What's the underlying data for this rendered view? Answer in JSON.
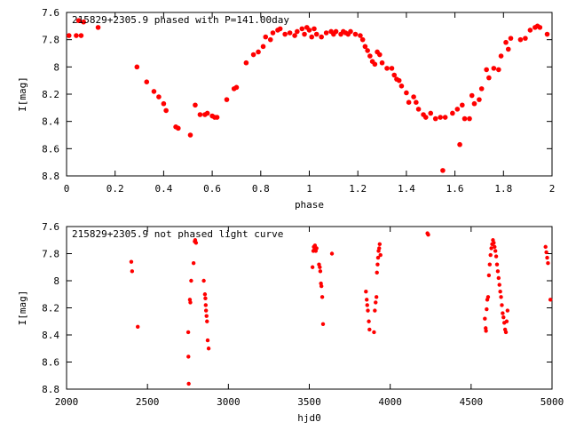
{
  "chart_data": [
    {
      "type": "scatter",
      "title": "215829+2305.9 phased with P=141.00day",
      "xlabel": "phase",
      "ylabel": "I[mag]",
      "xlim": [
        0,
        2
      ],
      "ylim": [
        8.8,
        7.6
      ],
      "y_inverted": true,
      "grid": false,
      "x_ticks": [
        "0",
        "0.2",
        "0.4",
        "0.6",
        "0.8",
        "1",
        "1.2",
        "1.4",
        "1.6",
        "1.8",
        "2"
      ],
      "y_ticks": [
        "7.6",
        "7.8",
        "8",
        "8.2",
        "8.4",
        "8.6",
        "8.8"
      ],
      "x_tick_values": [
        0,
        0.2,
        0.4,
        0.6,
        0.8,
        1.0,
        1.2,
        1.4,
        1.6,
        1.8,
        2.0
      ],
      "y_tick_values": [
        7.6,
        7.8,
        8.0,
        8.2,
        8.4,
        8.6,
        8.8
      ],
      "marker_color": "#ff0000",
      "points": [
        [
          0.01,
          7.77
        ],
        [
          0.04,
          7.77
        ],
        [
          0.05,
          7.66
        ],
        [
          0.06,
          7.77
        ],
        [
          0.07,
          7.67
        ],
        [
          0.13,
          7.71
        ],
        [
          0.29,
          8.0
        ],
        [
          0.33,
          8.11
        ],
        [
          0.36,
          8.18
        ],
        [
          0.38,
          8.22
        ],
        [
          0.4,
          8.27
        ],
        [
          0.41,
          8.32
        ],
        [
          0.45,
          8.44
        ],
        [
          0.46,
          8.45
        ],
        [
          0.51,
          8.5
        ],
        [
          0.53,
          8.28
        ],
        [
          0.55,
          8.35
        ],
        [
          0.57,
          8.35
        ],
        [
          0.58,
          8.34
        ],
        [
          0.6,
          8.36
        ],
        [
          0.61,
          8.37
        ],
        [
          0.62,
          8.37
        ],
        [
          0.66,
          8.24
        ],
        [
          0.69,
          8.16
        ],
        [
          0.7,
          8.15
        ],
        [
          0.74,
          7.97
        ],
        [
          0.77,
          7.91
        ],
        [
          0.79,
          7.89
        ],
        [
          0.81,
          7.85
        ],
        [
          0.82,
          7.78
        ],
        [
          0.84,
          7.8
        ],
        [
          0.85,
          7.75
        ],
        [
          0.87,
          7.73
        ],
        [
          0.88,
          7.72
        ],
        [
          0.9,
          7.76
        ],
        [
          0.92,
          7.75
        ],
        [
          0.94,
          7.77
        ],
        [
          0.95,
          7.74
        ],
        [
          0.97,
          7.72
        ],
        [
          0.98,
          7.76
        ],
        [
          0.99,
          7.71
        ],
        [
          1.0,
          7.73
        ],
        [
          1.01,
          7.78
        ],
        [
          1.02,
          7.72
        ],
        [
          1.03,
          7.76
        ],
        [
          1.05,
          7.78
        ],
        [
          1.07,
          7.75
        ],
        [
          1.09,
          7.74
        ],
        [
          1.1,
          7.76
        ],
        [
          1.11,
          7.74
        ],
        [
          1.13,
          7.76
        ],
        [
          1.14,
          7.74
        ],
        [
          1.15,
          7.75
        ],
        [
          1.16,
          7.76
        ],
        [
          1.17,
          7.74
        ],
        [
          1.19,
          7.76
        ],
        [
          1.21,
          7.77
        ],
        [
          1.22,
          7.8
        ],
        [
          1.23,
          7.85
        ],
        [
          1.24,
          7.88
        ],
        [
          1.25,
          7.92
        ],
        [
          1.26,
          7.96
        ],
        [
          1.27,
          7.98
        ],
        [
          1.28,
          7.89
        ],
        [
          1.29,
          7.91
        ],
        [
          1.3,
          7.97
        ],
        [
          1.32,
          8.01
        ],
        [
          1.34,
          8.01
        ],
        [
          1.35,
          8.06
        ],
        [
          1.36,
          8.09
        ],
        [
          1.37,
          8.1
        ],
        [
          1.38,
          8.14
        ],
        [
          1.4,
          8.19
        ],
        [
          1.41,
          8.26
        ],
        [
          1.43,
          8.22
        ],
        [
          1.44,
          8.26
        ],
        [
          1.45,
          8.31
        ],
        [
          1.47,
          8.35
        ],
        [
          1.48,
          8.37
        ],
        [
          1.5,
          8.34
        ],
        [
          1.52,
          8.38
        ],
        [
          1.54,
          8.37
        ],
        [
          1.55,
          8.76
        ],
        [
          1.56,
          8.37
        ],
        [
          1.59,
          8.34
        ],
        [
          1.61,
          8.31
        ],
        [
          1.62,
          8.57
        ],
        [
          1.63,
          8.28
        ],
        [
          1.64,
          8.38
        ],
        [
          1.66,
          8.38
        ],
        [
          1.67,
          8.21
        ],
        [
          1.68,
          8.27
        ],
        [
          1.7,
          8.24
        ],
        [
          1.71,
          8.16
        ],
        [
          1.73,
          8.02
        ],
        [
          1.74,
          8.08
        ],
        [
          1.76,
          8.01
        ],
        [
          1.78,
          8.02
        ],
        [
          1.79,
          7.92
        ],
        [
          1.81,
          7.82
        ],
        [
          1.82,
          7.87
        ],
        [
          1.83,
          7.79
        ],
        [
          1.87,
          7.8
        ],
        [
          1.89,
          7.79
        ],
        [
          1.91,
          7.73
        ],
        [
          1.93,
          7.71
        ],
        [
          1.94,
          7.7
        ],
        [
          1.95,
          7.71
        ],
        [
          1.98,
          7.76
        ]
      ]
    },
    {
      "type": "scatter",
      "title": "215829+2305.9 not phased light curve",
      "xlabel": "hjd0",
      "ylabel": "I[mag]",
      "xlim": [
        2000,
        5000
      ],
      "ylim": [
        8.8,
        7.6
      ],
      "y_inverted": true,
      "grid": false,
      "x_ticks": [
        "2000",
        "2500",
        "3000",
        "3500",
        "4000",
        "4500",
        "5000"
      ],
      "y_ticks": [
        "7.6",
        "7.8",
        "8",
        "8.2",
        "8.4",
        "8.6",
        "8.8"
      ],
      "x_tick_values": [
        2000,
        2500,
        3000,
        3500,
        4000,
        4500,
        5000
      ],
      "y_tick_values": [
        7.6,
        7.8,
        8.0,
        8.2,
        8.4,
        8.6,
        8.8
      ],
      "marker_color": "#ff0000",
      "points": [
        [
          2400,
          7.86
        ],
        [
          2405,
          7.93
        ],
        [
          2440,
          8.34
        ],
        [
          2752,
          8.38
        ],
        [
          2753,
          8.56
        ],
        [
          2755,
          8.76
        ],
        [
          2762,
          8.14
        ],
        [
          2765,
          8.16
        ],
        [
          2770,
          8.0
        ],
        [
          2785,
          7.87
        ],
        [
          2792,
          7.71
        ],
        [
          2795,
          7.7
        ],
        [
          2800,
          7.72
        ],
        [
          2848,
          8.0
        ],
        [
          2855,
          8.1
        ],
        [
          2858,
          8.13
        ],
        [
          2860,
          8.18
        ],
        [
          2862,
          8.22
        ],
        [
          2865,
          8.26
        ],
        [
          2868,
          8.3
        ],
        [
          2872,
          8.44
        ],
        [
          2878,
          8.5
        ],
        [
          3520,
          7.9
        ],
        [
          3525,
          7.78
        ],
        [
          3528,
          7.75
        ],
        [
          3532,
          7.77
        ],
        [
          3535,
          7.74
        ],
        [
          3540,
          7.78
        ],
        [
          3545,
          7.76
        ],
        [
          3560,
          7.88
        ],
        [
          3565,
          7.9
        ],
        [
          3568,
          7.93
        ],
        [
          3572,
          8.02
        ],
        [
          3575,
          8.04
        ],
        [
          3580,
          8.12
        ],
        [
          3585,
          8.32
        ],
        [
          3640,
          7.8
        ],
        [
          3850,
          8.08
        ],
        [
          3855,
          8.14
        ],
        [
          3858,
          8.18
        ],
        [
          3862,
          8.22
        ],
        [
          3868,
          8.3
        ],
        [
          3872,
          8.36
        ],
        [
          3900,
          8.38
        ],
        [
          3905,
          8.22
        ],
        [
          3910,
          8.16
        ],
        [
          3915,
          8.12
        ],
        [
          3918,
          7.94
        ],
        [
          3922,
          7.88
        ],
        [
          3925,
          7.83
        ],
        [
          3928,
          7.78
        ],
        [
          3932,
          7.76
        ],
        [
          3935,
          7.73
        ],
        [
          3940,
          7.81
        ],
        [
          4230,
          7.65
        ],
        [
          4235,
          7.66
        ],
        [
          4585,
          8.28
        ],
        [
          4590,
          8.35
        ],
        [
          4592,
          8.37
        ],
        [
          4596,
          8.21
        ],
        [
          4600,
          8.14
        ],
        [
          4605,
          8.12
        ],
        [
          4610,
          7.96
        ],
        [
          4615,
          7.88
        ],
        [
          4620,
          7.81
        ],
        [
          4625,
          7.76
        ],
        [
          4630,
          7.73
        ],
        [
          4635,
          7.7
        ],
        [
          4640,
          7.72
        ],
        [
          4645,
          7.75
        ],
        [
          4650,
          7.78
        ],
        [
          4655,
          7.82
        ],
        [
          4660,
          7.88
        ],
        [
          4665,
          7.93
        ],
        [
          4670,
          7.98
        ],
        [
          4675,
          8.03
        ],
        [
          4680,
          8.08
        ],
        [
          4685,
          8.12
        ],
        [
          4690,
          8.18
        ],
        [
          4695,
          8.24
        ],
        [
          4700,
          8.27
        ],
        [
          4705,
          8.31
        ],
        [
          4710,
          8.36
        ],
        [
          4715,
          8.38
        ],
        [
          4720,
          8.3
        ],
        [
          4725,
          8.22
        ],
        [
          4960,
          7.75
        ],
        [
          4965,
          7.79
        ],
        [
          4970,
          7.83
        ],
        [
          4975,
          7.87
        ],
        [
          4990,
          8.14
        ]
      ]
    }
  ]
}
